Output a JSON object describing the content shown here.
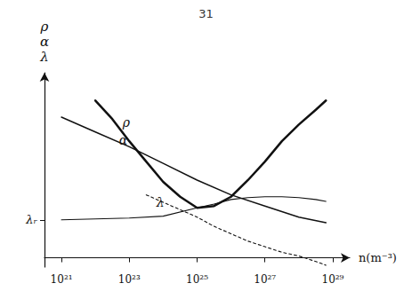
{
  "chart_data": {
    "type": "line",
    "title": "31",
    "x_label": "n(m⁻³)",
    "y_label": "ρ\nα\nλ",
    "annotations": [
      "ρ",
      "α",
      "λ"
    ],
    "xlim": [
      20.5,
      29.5
    ],
    "xticks": [
      {
        "value": 21,
        "label": "10²¹"
      },
      {
        "value": 23,
        "label": "10²³"
      },
      {
        "value": 25,
        "label": "10²⁵"
      },
      {
        "value": 27,
        "label": "10²⁷"
      },
      {
        "value": 29,
        "label": "10²⁹"
      }
    ],
    "ylim": [
      -0.05,
      1.0
    ],
    "yticks": [
      {
        "value": 0.205,
        "label": "λᵣ"
      }
    ],
    "grid": false,
    "series": [
      {
        "color": "#111111",
        "line_style": "solid",
        "x": [
          22.0,
          22.5,
          23.0,
          23.5,
          24.0,
          24.5,
          25.0,
          25.5,
          26.0,
          26.5,
          27.0,
          27.5,
          28.0,
          28.5,
          28.8
        ],
        "values": [
          0.85,
          0.75,
          0.63,
          0.52,
          0.41,
          0.33,
          0.27,
          0.28,
          0.33,
          0.42,
          0.52,
          0.63,
          0.72,
          0.8,
          0.85
        ]
      },
      {
        "color": "#111111",
        "line_style": "solid",
        "x": [
          21.0,
          22.0,
          23.0,
          24.0,
          25.0,
          26.0,
          27.0,
          28.0,
          28.8
        ],
        "values": [
          0.76,
          0.68,
          0.6,
          0.51,
          0.42,
          0.34,
          0.28,
          0.22,
          0.19
        ]
      },
      {
        "color": "#111111",
        "line_style": "solid",
        "x": [
          21.0,
          22.0,
          23.0,
          24.0,
          25.0,
          25.5,
          26.0,
          26.5,
          27.0,
          27.5,
          28.0,
          28.5,
          28.8
        ],
        "values": [
          0.205,
          0.21,
          0.215,
          0.225,
          0.27,
          0.29,
          0.315,
          0.325,
          0.33,
          0.33,
          0.325,
          0.315,
          0.305
        ]
      },
      {
        "color": "#111111",
        "line_style": "dashed",
        "x": [
          23.5,
          24.0,
          24.5,
          25.0,
          25.5,
          26.0,
          26.5,
          27.0,
          27.5,
          28.0,
          28.5,
          28.8
        ],
        "values": [
          0.34,
          0.3,
          0.26,
          0.22,
          0.17,
          0.13,
          0.09,
          0.06,
          0.03,
          0.01,
          -0.02,
          -0.04
        ]
      }
    ]
  }
}
